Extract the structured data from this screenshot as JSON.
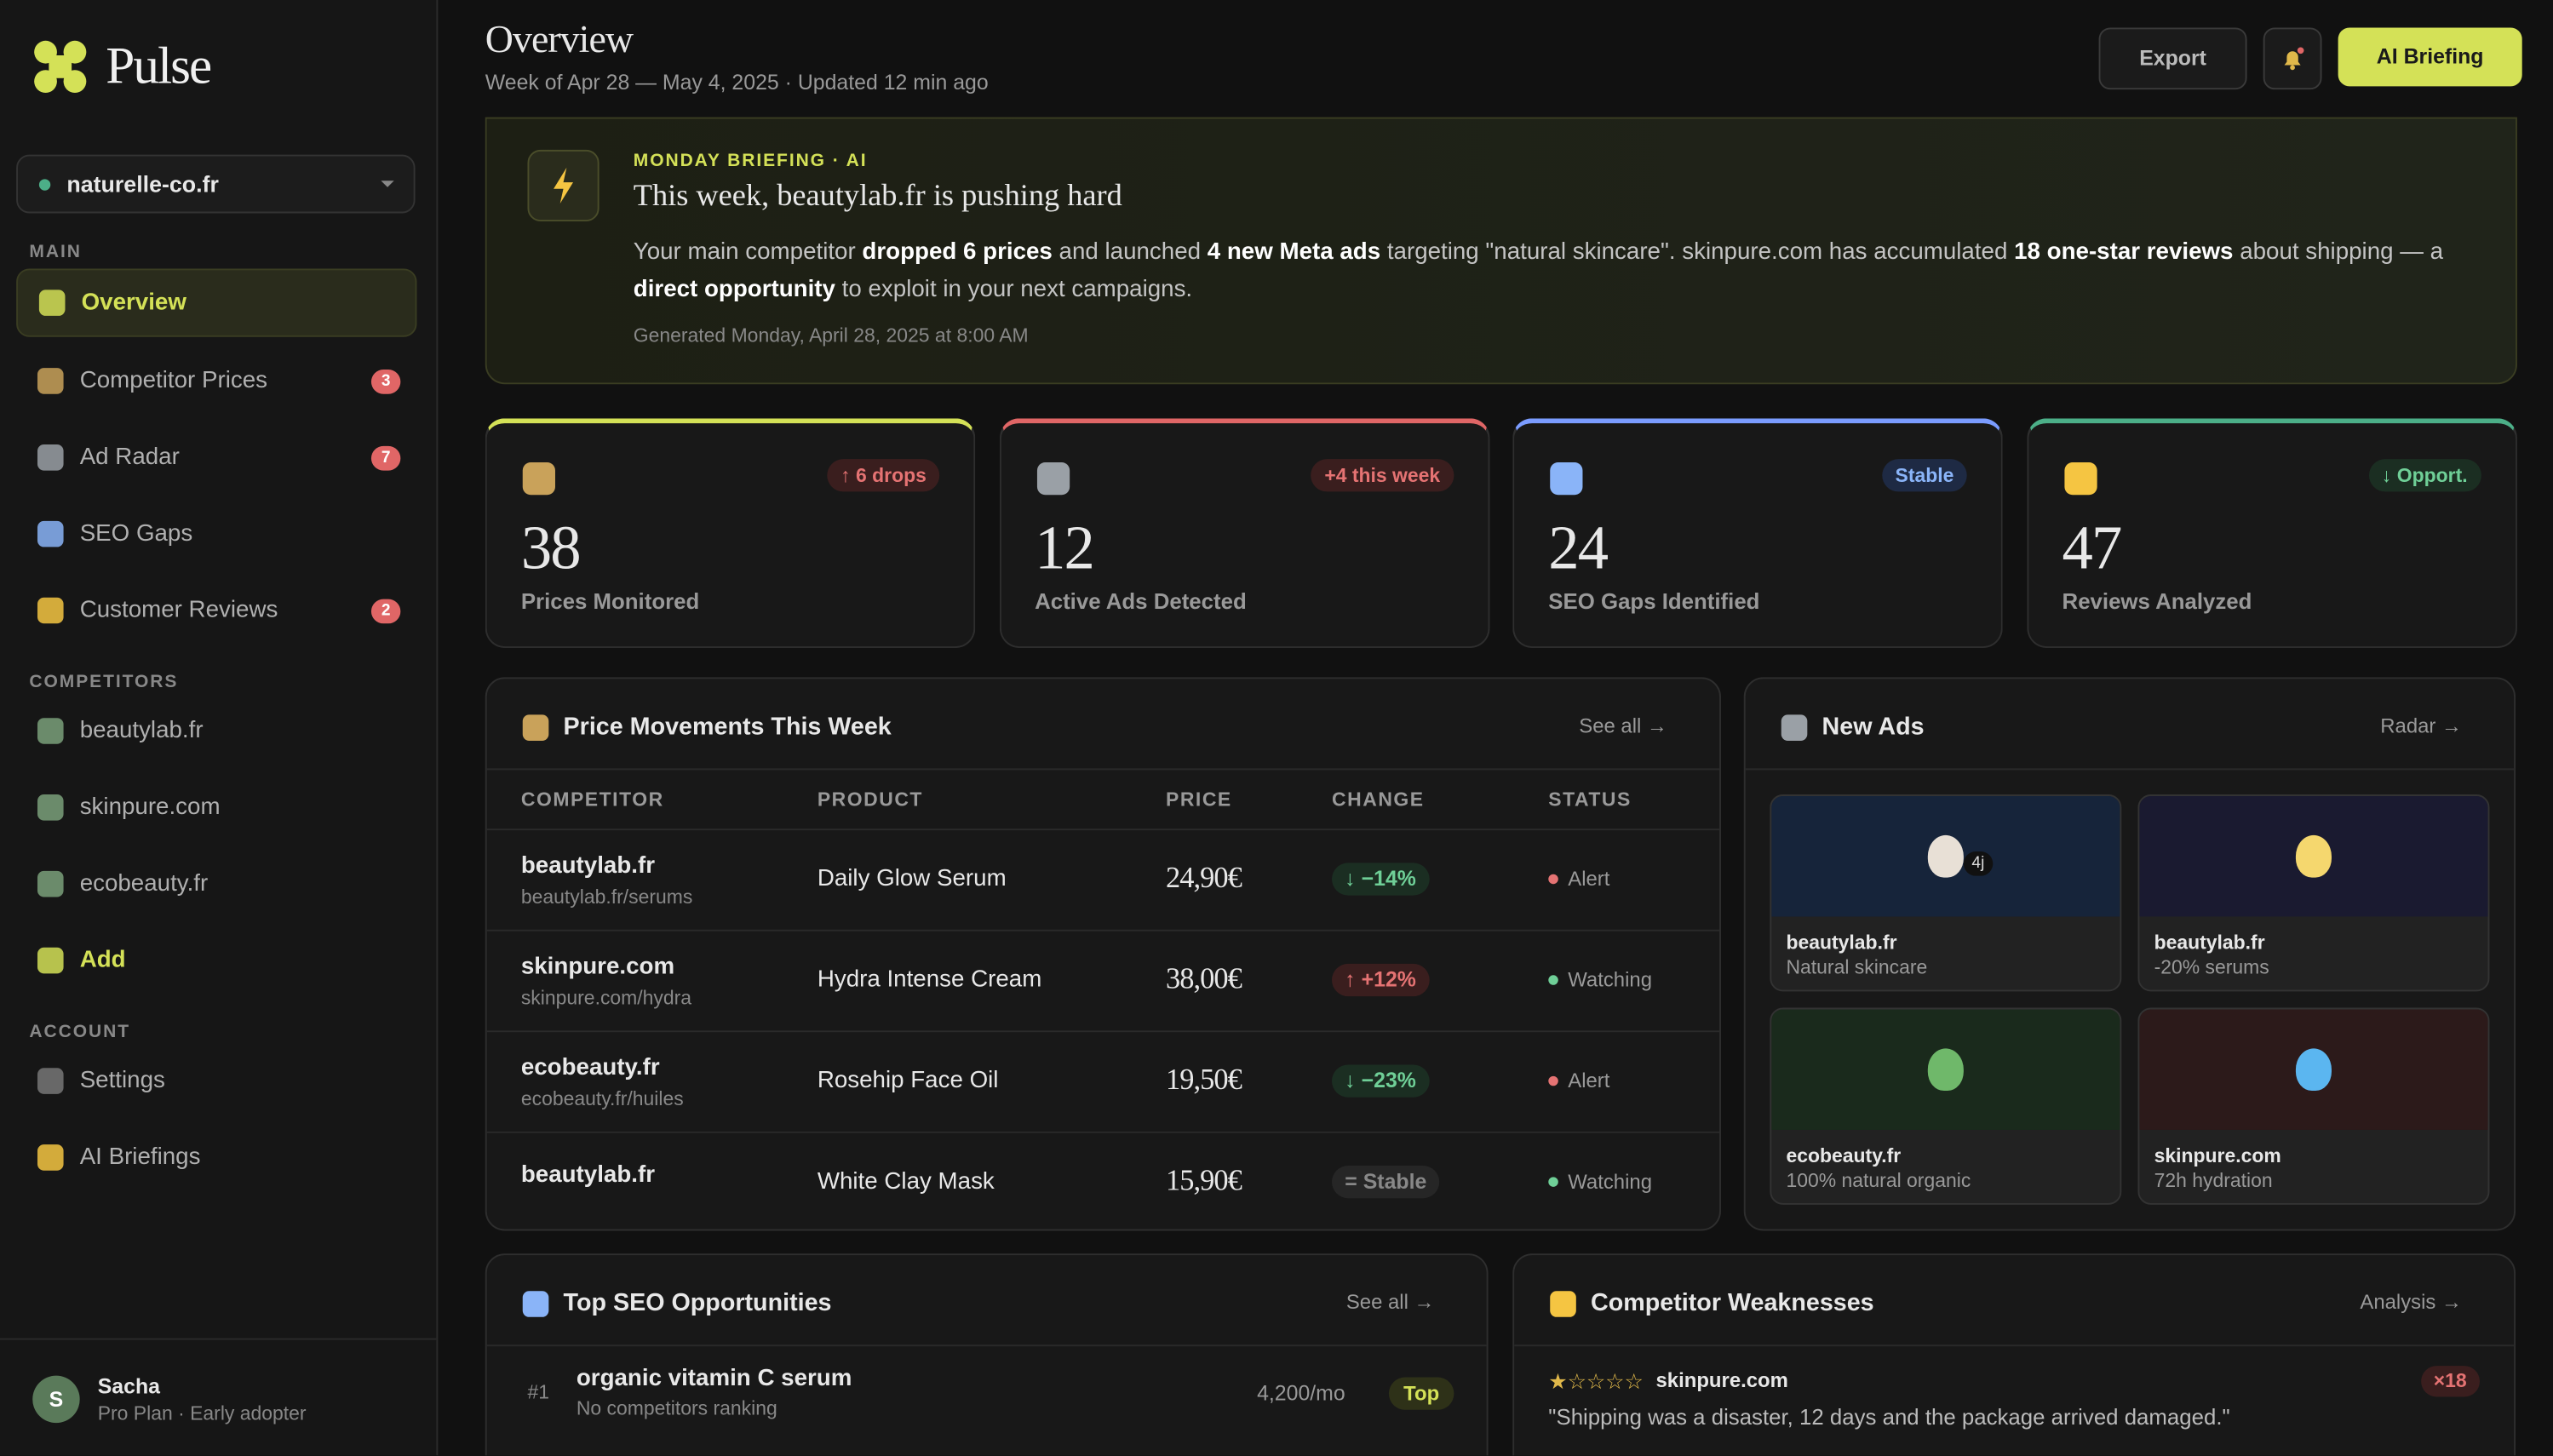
{
  "sidebar": {
    "brand": "Pulse",
    "site": "naturelle-co.fr",
    "sections": [
      {
        "title": "MAIN",
        "items": [
          {
            "label": "Overview",
            "active": true,
            "icon": "#d4e157"
          },
          {
            "label": "Competitor Prices",
            "badge": 3,
            "icon": "#c9a25a"
          },
          {
            "label": "Ad Radar",
            "badge": 7,
            "icon": "#9aa0a6"
          },
          {
            "label": "SEO Gaps",
            "icon": "#8ab4f8"
          },
          {
            "label": "Customer Reviews",
            "badge": 2,
            "icon": "#f5c542"
          }
        ]
      },
      {
        "title": "COMPETITORS",
        "items": [
          {
            "label": "beautylab.fr",
            "icon": "#7aa07a"
          },
          {
            "label": "skinpure.com",
            "icon": "#7aa07a"
          },
          {
            "label": "ecobeauty.fr",
            "icon": "#7aa07a"
          },
          {
            "label": "Add",
            "accent": true,
            "icon": "#d4e157"
          }
        ]
      },
      {
        "title": "ACCOUNT",
        "items": [
          {
            "label": "Settings",
            "icon": "#777"
          },
          {
            "label": "AI Briefings",
            "icon": "#f5c542"
          }
        ]
      }
    ],
    "user": {
      "initial": "S",
      "name": "Sacha",
      "plan": "Pro Plan · Early adopter"
    }
  },
  "header": {
    "title": "Overview",
    "subtitle": "Week of Apr 28 — May 4, 2025 · Updated 12 min ago",
    "export": "Export",
    "briefing": "AI Briefing"
  },
  "briefing": {
    "label": "MONDAY BRIEFING · AI",
    "title": "This week, beautylab.fr is pushing hard",
    "body": [
      {
        "text": "Your main competitor "
      },
      {
        "text": "dropped 6 prices",
        "bold": true
      },
      {
        "text": " and launched "
      },
      {
        "text": "4 new Meta ads",
        "bold": true
      },
      {
        "text": " targeting \"natural skincare\". skinpure.com has accumulated "
      },
      {
        "text": "18 one-star reviews",
        "bold": true
      },
      {
        "text": " about shipping — a "
      },
      {
        "text": "direct opportunity",
        "bold": true
      },
      {
        "text": " to exploit in your next campaigns."
      }
    ],
    "generated": "Generated Monday, April 28, 2025 at 8:00 AM"
  },
  "stats": [
    {
      "badge": "↑ 6 drops",
      "value": 38,
      "label": "Prices Monitored",
      "accent": "#d4e157",
      "tone": "red",
      "icon": "#c9a25a"
    },
    {
      "badge": "+4 this week",
      "value": 12,
      "label": "Active Ads Detected",
      "accent": "#e06666",
      "tone": "red",
      "icon": "#9aa0a6"
    },
    {
      "badge": "Stable",
      "value": 24,
      "label": "SEO Gaps Identified",
      "accent": "#7b9cff",
      "tone": "blue",
      "icon": "#8ab4f8"
    },
    {
      "badge": "↓ Opport.",
      "value": 47,
      "label": "Reviews Analyzed",
      "accent": "#4caf88",
      "tone": "green",
      "icon": "#f5c542"
    }
  ],
  "prices": {
    "title": "Price Movements This Week",
    "link": "See all →",
    "columns": [
      "COMPETITOR",
      "PRODUCT",
      "PRICE",
      "CHANGE",
      "STATUS"
    ],
    "rows": [
      {
        "competitor": "beautylab.fr",
        "url": "beautylab.fr/serums",
        "product": "Daily Glow Serum",
        "price": "24,90€",
        "change": "↓ −14%",
        "tone": "green",
        "status": "Alert",
        "statusTone": "red"
      },
      {
        "competitor": "skinpure.com",
        "url": "skinpure.com/hydra",
        "product": "Hydra Intense Cream",
        "price": "38,00€",
        "change": "↑ +12%",
        "tone": "red",
        "status": "Watching",
        "statusTone": "green"
      },
      {
        "competitor": "ecobeauty.fr",
        "url": "ecobeauty.fr/huiles",
        "product": "Rosehip Face Oil",
        "price": "19,50€",
        "change": "↓ −23%",
        "tone": "green",
        "status": "Alert",
        "statusTone": "red"
      },
      {
        "competitor": "beautylab.fr",
        "product": "White Clay Mask",
        "price": "15,90€",
        "change": "= Stable",
        "tone": "gray",
        "status": "Watching",
        "statusTone": "green"
      }
    ]
  },
  "ads": {
    "title": "New Ads",
    "link": "Radar →",
    "items": [
      {
        "brand": "beautylab.fr",
        "text": "Natural skincare",
        "tag": "4j",
        "bg": "#16243a",
        "icon": "#e8e0d6"
      },
      {
        "brand": "beautylab.fr",
        "text": "-20% serums",
        "bg": "#1a1a30",
        "icon": "#f5d76e"
      },
      {
        "brand": "ecobeauty.fr",
        "text": "100% natural organic",
        "bg": "#1a2a1c",
        "icon": "#6fb86a"
      },
      {
        "brand": "skinpure.com",
        "text": "72h hydration",
        "bg": "#2c1a1a",
        "icon": "#5bb6f0"
      }
    ]
  },
  "seo": {
    "title": "Top SEO Opportunities",
    "link": "See all →",
    "rows": [
      {
        "rank": "#1",
        "keyword": "organic vitamin C serum",
        "note": "No competitors ranking",
        "volume": "4,200/mo",
        "tag": "Top"
      }
    ]
  },
  "weaknesses": {
    "title": "Competitor Weaknesses",
    "link": "Analysis →",
    "items": [
      {
        "stars": "★☆☆☆☆",
        "brand": "skinpure.com",
        "count": "×18",
        "quote": "\"Shipping was a disaster, 12 days and the package arrived damaged.\""
      }
    ]
  }
}
